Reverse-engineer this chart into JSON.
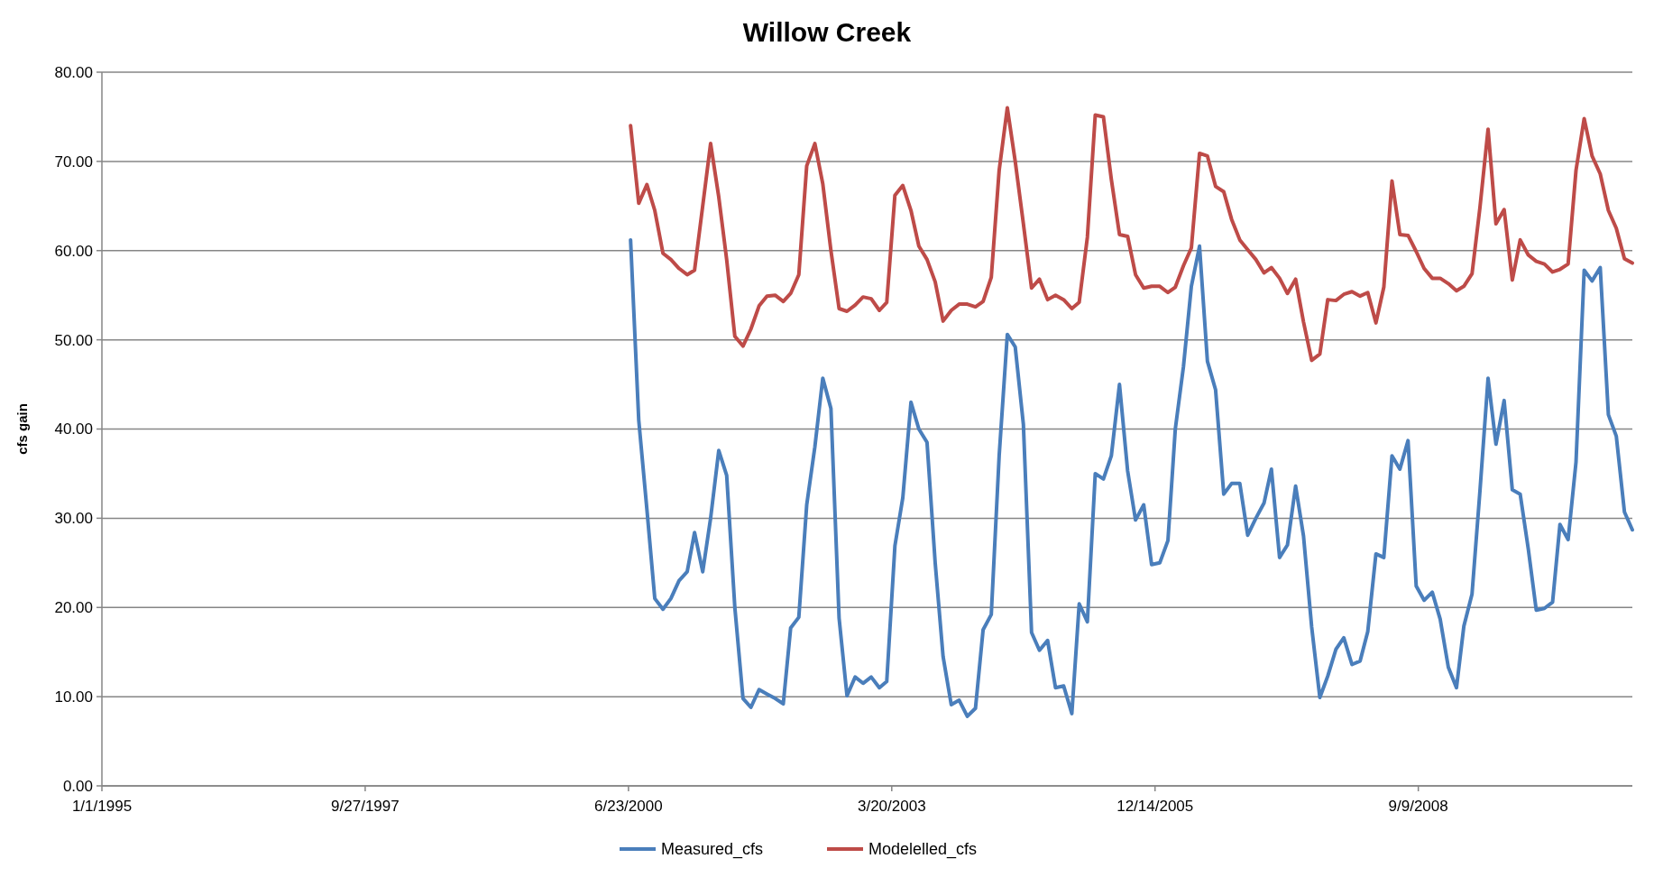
{
  "chart_data": {
    "type": "line",
    "title": "Willow Creek",
    "ylabel": "cfs gain",
    "legend": "bottom",
    "grid": "y",
    "marker": "none",
    "line_style": "solid",
    "xlim": [
      "1995-01-01",
      "2010-12-01"
    ],
    "xticks": [
      {
        "value": "1995-01-01",
        "label": "1/1/1995"
      },
      {
        "value": "1997-09-27",
        "label": "9/27/1997"
      },
      {
        "value": "2000-06-23",
        "label": "6/23/2000"
      },
      {
        "value": "2003-03-20",
        "label": "3/20/2003"
      },
      {
        "value": "2005-12-14",
        "label": "12/14/2005"
      },
      {
        "value": "2008-09-09",
        "label": "9/9/2008"
      }
    ],
    "ylim": [
      0,
      80
    ],
    "yticks": [
      {
        "value": 0,
        "label": "0.00"
      },
      {
        "value": 10,
        "label": "10.00"
      },
      {
        "value": 20,
        "label": "20.00"
      },
      {
        "value": 30,
        "label": "30.00"
      },
      {
        "value": 40,
        "label": "40.00"
      },
      {
        "value": 50,
        "label": "50.00"
      },
      {
        "value": 60,
        "label": "60.00"
      },
      {
        "value": 70,
        "label": "70.00"
      },
      {
        "value": 80,
        "label": "80.00"
      }
    ],
    "x": [
      "2000-07",
      "2000-08",
      "2000-09",
      "2000-10",
      "2000-11",
      "2000-12",
      "2001-01",
      "2001-02",
      "2001-03",
      "2001-04",
      "2001-05",
      "2001-06",
      "2001-07",
      "2001-08",
      "2001-09",
      "2001-10",
      "2001-11",
      "2001-12",
      "2002-01",
      "2002-02",
      "2002-03",
      "2002-04",
      "2002-05",
      "2002-06",
      "2002-07",
      "2002-08",
      "2002-09",
      "2002-10",
      "2002-11",
      "2002-12",
      "2003-01",
      "2003-02",
      "2003-03",
      "2003-04",
      "2003-05",
      "2003-06",
      "2003-07",
      "2003-08",
      "2003-09",
      "2003-10",
      "2003-11",
      "2003-12",
      "2004-01",
      "2004-02",
      "2004-03",
      "2004-04",
      "2004-05",
      "2004-06",
      "2004-07",
      "2004-08",
      "2004-09",
      "2004-10",
      "2004-11",
      "2004-12",
      "2005-01",
      "2005-02",
      "2005-03",
      "2005-04",
      "2005-05",
      "2005-06",
      "2005-07",
      "2005-08",
      "2005-09",
      "2005-10",
      "2005-11",
      "2005-12",
      "2006-01",
      "2006-02",
      "2006-03",
      "2006-04",
      "2006-05",
      "2006-06",
      "2006-07",
      "2006-08",
      "2006-09",
      "2006-10",
      "2006-11",
      "2006-12",
      "2007-01",
      "2007-02",
      "2007-03",
      "2007-04",
      "2007-05",
      "2007-06",
      "2007-07",
      "2007-08",
      "2007-09",
      "2007-10",
      "2007-11",
      "2007-12",
      "2008-01",
      "2008-02",
      "2008-03",
      "2008-04",
      "2008-05",
      "2008-06",
      "2008-07",
      "2008-08",
      "2008-09",
      "2008-10",
      "2008-11",
      "2008-12",
      "2009-01",
      "2009-02",
      "2009-03",
      "2009-04",
      "2009-05",
      "2009-06",
      "2009-07",
      "2009-08",
      "2009-09",
      "2009-10",
      "2009-11",
      "2009-12",
      "2010-01",
      "2010-02",
      "2010-03",
      "2010-04",
      "2010-05",
      "2010-06",
      "2010-07",
      "2010-08",
      "2010-09",
      "2010-10",
      "2010-11",
      "2010-12"
    ],
    "series": [
      {
        "name": "Measured_cfs",
        "color": "#4a7ebb",
        "values": [
          61.2,
          41,
          31,
          21,
          19.8,
          21,
          23,
          24,
          28.4,
          24,
          30,
          37.6,
          34.8,
          20,
          9.8,
          8.8,
          10.8,
          10.3,
          9.8,
          9.2,
          17.7,
          18.9,
          31.5,
          38,
          45.7,
          42.3,
          18.8,
          10.1,
          12.2,
          11.5,
          12.2,
          11,
          11.7,
          26.9,
          32.3,
          43,
          40,
          38.5,
          25,
          14.5,
          9.1,
          9.6,
          7.8,
          8.7,
          17.5,
          19.2,
          37,
          50.6,
          49.2,
          40.5,
          17.2,
          15.2,
          16.3,
          11,
          11.2,
          8.1,
          20.4,
          18.4,
          35,
          34.4,
          37,
          45,
          35.3,
          29.8,
          31.5,
          24.8,
          25,
          27.5,
          40,
          47,
          56,
          60.5,
          47.6,
          44.4,
          32.7,
          33.9,
          33.9,
          28.1,
          30,
          31.7,
          35.5,
          25.6,
          27,
          33.6,
          28,
          17.8,
          9.9,
          12.3,
          15.3,
          16.6,
          13.6,
          14,
          17.3,
          26,
          25.6,
          37,
          35.5,
          38.7,
          22.4,
          20.8,
          21.7,
          18.7,
          13.3,
          11,
          17.9,
          21.5,
          33,
          45.7,
          38.3,
          43.2,
          33.2,
          32.7,
          26.5,
          19.7,
          19.9,
          20.6,
          29.3,
          27.6,
          36.3,
          57.8,
          56.6,
          58.1,
          41.6,
          39.2,
          30.7,
          28.7
        ]
      },
      {
        "name": "Modelelled_cfs",
        "color": "#be4b48",
        "values": [
          74,
          65.3,
          67.4,
          64.5,
          59.7,
          59,
          58,
          57.3,
          57.8,
          65,
          72,
          66,
          59,
          50.4,
          49.3,
          51.2,
          53.8,
          54.9,
          55,
          54.3,
          55.2,
          57.3,
          69.5,
          72,
          67.5,
          60,
          53.5,
          53.2,
          53.9,
          54.8,
          54.6,
          53.3,
          54.2,
          66.2,
          67.3,
          64.5,
          60.5,
          59,
          56.5,
          52.1,
          53.3,
          54,
          54,
          53.7,
          54.3,
          57,
          69,
          76,
          70,
          63,
          55.8,
          56.8,
          54.5,
          55,
          54.5,
          53.5,
          54.2,
          61.5,
          75.2,
          75,
          68,
          61.8,
          61.6,
          57.3,
          55.8,
          56,
          56,
          55.3,
          55.9,
          58.3,
          60.3,
          70.9,
          70.6,
          67.2,
          66.6,
          63.5,
          61.2,
          60.1,
          59,
          57.5,
          58.1,
          56.9,
          55.2,
          56.8,
          52,
          47.7,
          48.4,
          54.5,
          54.4,
          55.1,
          55.4,
          54.9,
          55.3,
          51.9,
          55.9,
          67.8,
          61.8,
          61.7,
          59.9,
          58,
          56.9,
          56.9,
          56.3,
          55.5,
          56,
          57.4,
          64.8,
          73.6,
          63,
          64.6,
          56.7,
          61.2,
          59.5,
          58.8,
          58.5,
          57.6,
          57.9,
          58.5,
          69,
          74.8,
          70.6,
          68.6,
          64.5,
          62.5,
          59.1,
          58.6
        ]
      }
    ]
  }
}
